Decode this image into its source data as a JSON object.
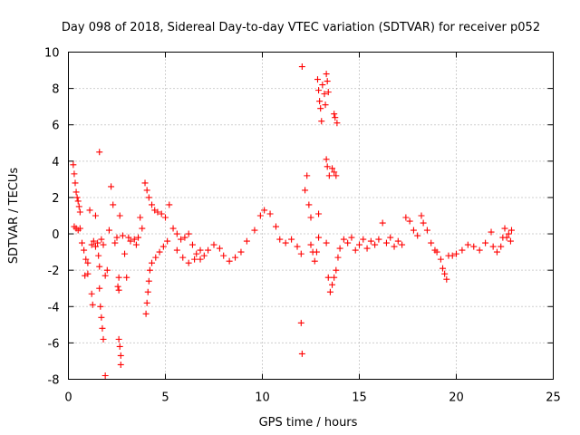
{
  "chart_data": {
    "type": "scatter",
    "title": "Day 098 of 2018, Sidereal Day-to-day VTEC variation (SDTVAR) for receiver p052",
    "xlabel": "GPS time / hours",
    "ylabel": "SDTVAR / TECUs",
    "xlim": [
      0,
      25
    ],
    "ylim": [
      -8,
      10
    ],
    "xticks": [
      "0",
      "5",
      "10",
      "15",
      "20",
      "25"
    ],
    "yticks": [
      "-8",
      "-6",
      "-4",
      "-2",
      "0",
      "2",
      "4",
      "6",
      "8",
      "10"
    ],
    "grid": true,
    "marker": "plus",
    "color": "#ff0000",
    "series": [
      {
        "name": "p052",
        "points": [
          [
            0.25,
            3.8
          ],
          [
            0.3,
            3.3
          ],
          [
            0.35,
            2.8
          ],
          [
            0.4,
            2.3
          ],
          [
            0.45,
            2.0
          ],
          [
            0.5,
            1.8
          ],
          [
            0.55,
            1.5
          ],
          [
            0.6,
            1.2
          ],
          [
            0.3,
            0.4
          ],
          [
            0.4,
            0.3
          ],
          [
            0.5,
            0.2
          ],
          [
            0.6,
            0.3
          ],
          [
            0.7,
            -0.5
          ],
          [
            0.8,
            -0.9
          ],
          [
            0.9,
            -1.4
          ],
          [
            1.0,
            -1.6
          ],
          [
            0.85,
            -2.3
          ],
          [
            1.0,
            -2.2
          ],
          [
            1.1,
            1.3
          ],
          [
            1.2,
            -0.6
          ],
          [
            1.3,
            -0.4
          ],
          [
            1.4,
            -0.7
          ],
          [
            1.2,
            -3.3
          ],
          [
            1.25,
            -3.9
          ],
          [
            1.4,
            1.0
          ],
          [
            1.5,
            -0.5
          ],
          [
            1.55,
            -1.2
          ],
          [
            1.6,
            -1.8
          ],
          [
            1.6,
            -3.0
          ],
          [
            1.65,
            -4.0
          ],
          [
            1.7,
            -4.6
          ],
          [
            1.75,
            -5.2
          ],
          [
            1.8,
            -5.8
          ],
          [
            1.6,
            4.5
          ],
          [
            1.7,
            -0.3
          ],
          [
            1.8,
            -0.6
          ],
          [
            1.9,
            -2.3
          ],
          [
            2.0,
            -2.0
          ],
          [
            1.9,
            -7.8
          ],
          [
            2.1,
            0.2
          ],
          [
            2.2,
            2.6
          ],
          [
            2.3,
            1.6
          ],
          [
            2.4,
            -0.5
          ],
          [
            2.5,
            -0.2
          ],
          [
            2.6,
            -2.4
          ],
          [
            2.65,
            1.0
          ],
          [
            2.55,
            -2.9
          ],
          [
            2.6,
            -3.1
          ],
          [
            2.6,
            -5.8
          ],
          [
            2.65,
            -6.2
          ],
          [
            2.7,
            -6.7
          ],
          [
            2.7,
            -7.2
          ],
          [
            2.8,
            -0.1
          ],
          [
            2.9,
            -1.1
          ],
          [
            3.0,
            -2.4
          ],
          [
            3.1,
            -0.2
          ],
          [
            3.2,
            -0.4
          ],
          [
            3.4,
            -0.3
          ],
          [
            3.6,
            -0.2
          ],
          [
            3.5,
            -0.6
          ],
          [
            3.7,
            0.9
          ],
          [
            3.8,
            0.3
          ],
          [
            4.0,
            -4.4
          ],
          [
            4.05,
            -3.8
          ],
          [
            4.1,
            -3.2
          ],
          [
            4.15,
            -2.6
          ],
          [
            4.2,
            -2.0
          ],
          [
            4.3,
            -1.6
          ],
          [
            4.5,
            -1.3
          ],
          [
            4.7,
            -1.0
          ],
          [
            4.9,
            -0.7
          ],
          [
            5.1,
            -0.4
          ],
          [
            3.95,
            2.8
          ],
          [
            4.05,
            2.4
          ],
          [
            4.15,
            2.0
          ],
          [
            4.3,
            1.6
          ],
          [
            4.45,
            1.3
          ],
          [
            4.6,
            1.2
          ],
          [
            4.8,
            1.1
          ],
          [
            5.0,
            0.9
          ],
          [
            5.2,
            1.6
          ],
          [
            5.4,
            0.3
          ],
          [
            5.6,
            0.0
          ],
          [
            5.8,
            -0.3
          ],
          [
            6.0,
            -0.2
          ],
          [
            6.2,
            0.0
          ],
          [
            6.4,
            -0.6
          ],
          [
            6.6,
            -1.1
          ],
          [
            6.8,
            -1.4
          ],
          [
            7.0,
            -1.2
          ],
          [
            7.2,
            -0.9
          ],
          [
            5.6,
            -0.9
          ],
          [
            5.9,
            -1.3
          ],
          [
            6.2,
            -1.6
          ],
          [
            6.5,
            -1.4
          ],
          [
            6.8,
            -0.9
          ],
          [
            7.5,
            -0.6
          ],
          [
            7.8,
            -0.8
          ],
          [
            8.0,
            -1.2
          ],
          [
            8.3,
            -1.5
          ],
          [
            8.6,
            -1.3
          ],
          [
            8.9,
            -1.0
          ],
          [
            9.2,
            -0.4
          ],
          [
            9.6,
            0.2
          ],
          [
            9.9,
            1.0
          ],
          [
            10.1,
            1.3
          ],
          [
            10.4,
            1.1
          ],
          [
            10.7,
            0.4
          ],
          [
            10.9,
            -0.3
          ],
          [
            11.2,
            -0.5
          ],
          [
            11.5,
            -0.3
          ],
          [
            11.8,
            -0.7
          ],
          [
            12.0,
            -1.1
          ],
          [
            12.05,
            9.2
          ],
          [
            12.0,
            -4.9
          ],
          [
            12.05,
            -6.6
          ],
          [
            12.2,
            2.4
          ],
          [
            12.3,
            3.2
          ],
          [
            12.4,
            1.6
          ],
          [
            12.5,
            0.9
          ],
          [
            12.5,
            -0.6
          ],
          [
            12.6,
            -1.0
          ],
          [
            12.7,
            -1.5
          ],
          [
            12.8,
            -1.0
          ],
          [
            12.9,
            -0.2
          ],
          [
            12.9,
            1.1
          ],
          [
            12.85,
            8.5
          ],
          [
            12.9,
            7.9
          ],
          [
            12.95,
            7.3
          ],
          [
            13.0,
            6.9
          ],
          [
            13.05,
            6.2
          ],
          [
            13.1,
            8.2
          ],
          [
            13.2,
            7.7
          ],
          [
            13.25,
            7.1
          ],
          [
            13.3,
            8.8
          ],
          [
            13.35,
            8.4
          ],
          [
            13.4,
            7.8
          ],
          [
            13.3,
            4.1
          ],
          [
            13.35,
            3.7
          ],
          [
            13.45,
            3.2
          ],
          [
            13.6,
            3.6
          ],
          [
            13.7,
            3.4
          ],
          [
            13.8,
            3.2
          ],
          [
            13.7,
            6.6
          ],
          [
            13.75,
            6.4
          ],
          [
            13.85,
            6.1
          ],
          [
            13.3,
            -0.5
          ],
          [
            13.4,
            -2.4
          ],
          [
            13.5,
            -3.2
          ],
          [
            13.6,
            -2.8
          ],
          [
            13.7,
            -2.4
          ],
          [
            13.8,
            -2.0
          ],
          [
            13.9,
            -1.3
          ],
          [
            14.0,
            -0.8
          ],
          [
            14.2,
            -0.3
          ],
          [
            14.4,
            -0.5
          ],
          [
            14.6,
            -0.2
          ],
          [
            14.8,
            -0.9
          ],
          [
            15.0,
            -0.6
          ],
          [
            15.2,
            -0.3
          ],
          [
            15.4,
            -0.8
          ],
          [
            15.6,
            -0.4
          ],
          [
            15.8,
            -0.6
          ],
          [
            16.0,
            -0.3
          ],
          [
            16.2,
            0.6
          ],
          [
            16.4,
            -0.5
          ],
          [
            16.6,
            -0.2
          ],
          [
            16.8,
            -0.7
          ],
          [
            17.0,
            -0.4
          ],
          [
            17.2,
            -0.6
          ],
          [
            17.4,
            0.9
          ],
          [
            17.6,
            0.7
          ],
          [
            17.8,
            0.2
          ],
          [
            18.0,
            -0.1
          ],
          [
            18.2,
            1.0
          ],
          [
            18.3,
            0.6
          ],
          [
            18.5,
            0.2
          ],
          [
            18.7,
            -0.5
          ],
          [
            18.9,
            -0.9
          ],
          [
            19.0,
            -1.0
          ],
          [
            19.2,
            -1.4
          ],
          [
            19.3,
            -1.9
          ],
          [
            19.4,
            -2.2
          ],
          [
            19.5,
            -2.5
          ],
          [
            19.6,
            -1.2
          ],
          [
            19.8,
            -1.2
          ],
          [
            20.0,
            -1.1
          ],
          [
            20.3,
            -0.9
          ],
          [
            20.6,
            -0.6
          ],
          [
            20.9,
            -0.7
          ],
          [
            21.2,
            -0.9
          ],
          [
            21.5,
            -0.5
          ],
          [
            21.8,
            0.1
          ],
          [
            21.9,
            -0.7
          ],
          [
            22.1,
            -1.0
          ],
          [
            22.3,
            -0.7
          ],
          [
            22.4,
            -0.2
          ],
          [
            22.5,
            0.3
          ],
          [
            22.6,
            -0.2
          ],
          [
            22.7,
            0.0
          ],
          [
            22.8,
            -0.4
          ],
          [
            22.85,
            0.2
          ]
        ]
      }
    ]
  }
}
